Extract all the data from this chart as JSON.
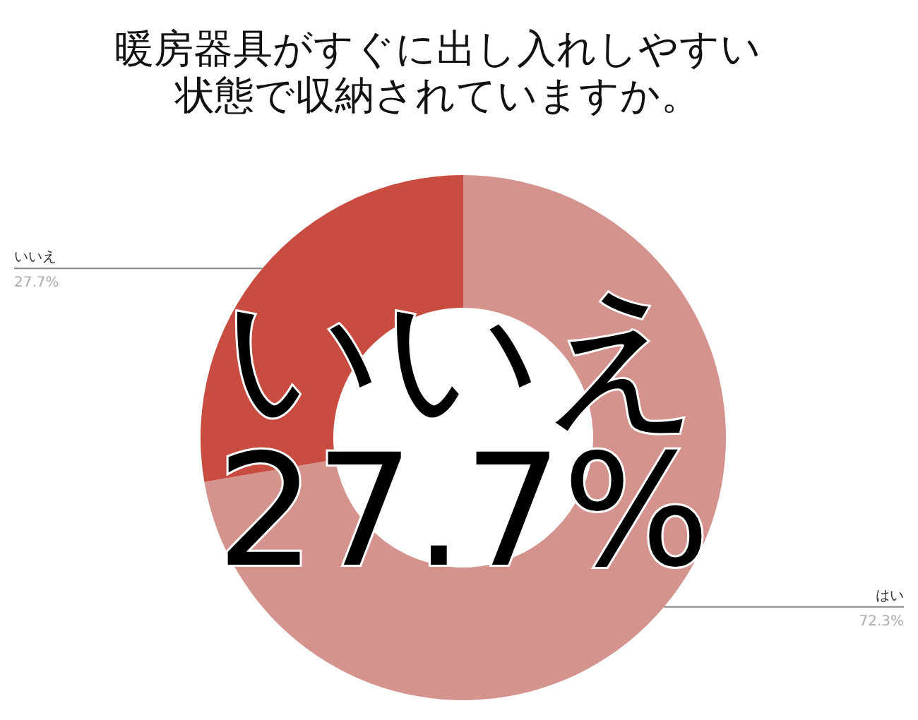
{
  "chart_data": {
    "type": "donut",
    "title": "暖房器具がすぐに出し入れしやすい状態で収納されていますか。",
    "categories": [
      "はい",
      "いいえ"
    ],
    "values": [
      72.3,
      27.7
    ],
    "colors": [
      "#d4938d",
      "#c84c3f"
    ],
    "value_labels": [
      "72.3%",
      "27.7%"
    ],
    "annotations": [
      "いいえ",
      "27.7%"
    ]
  }
}
